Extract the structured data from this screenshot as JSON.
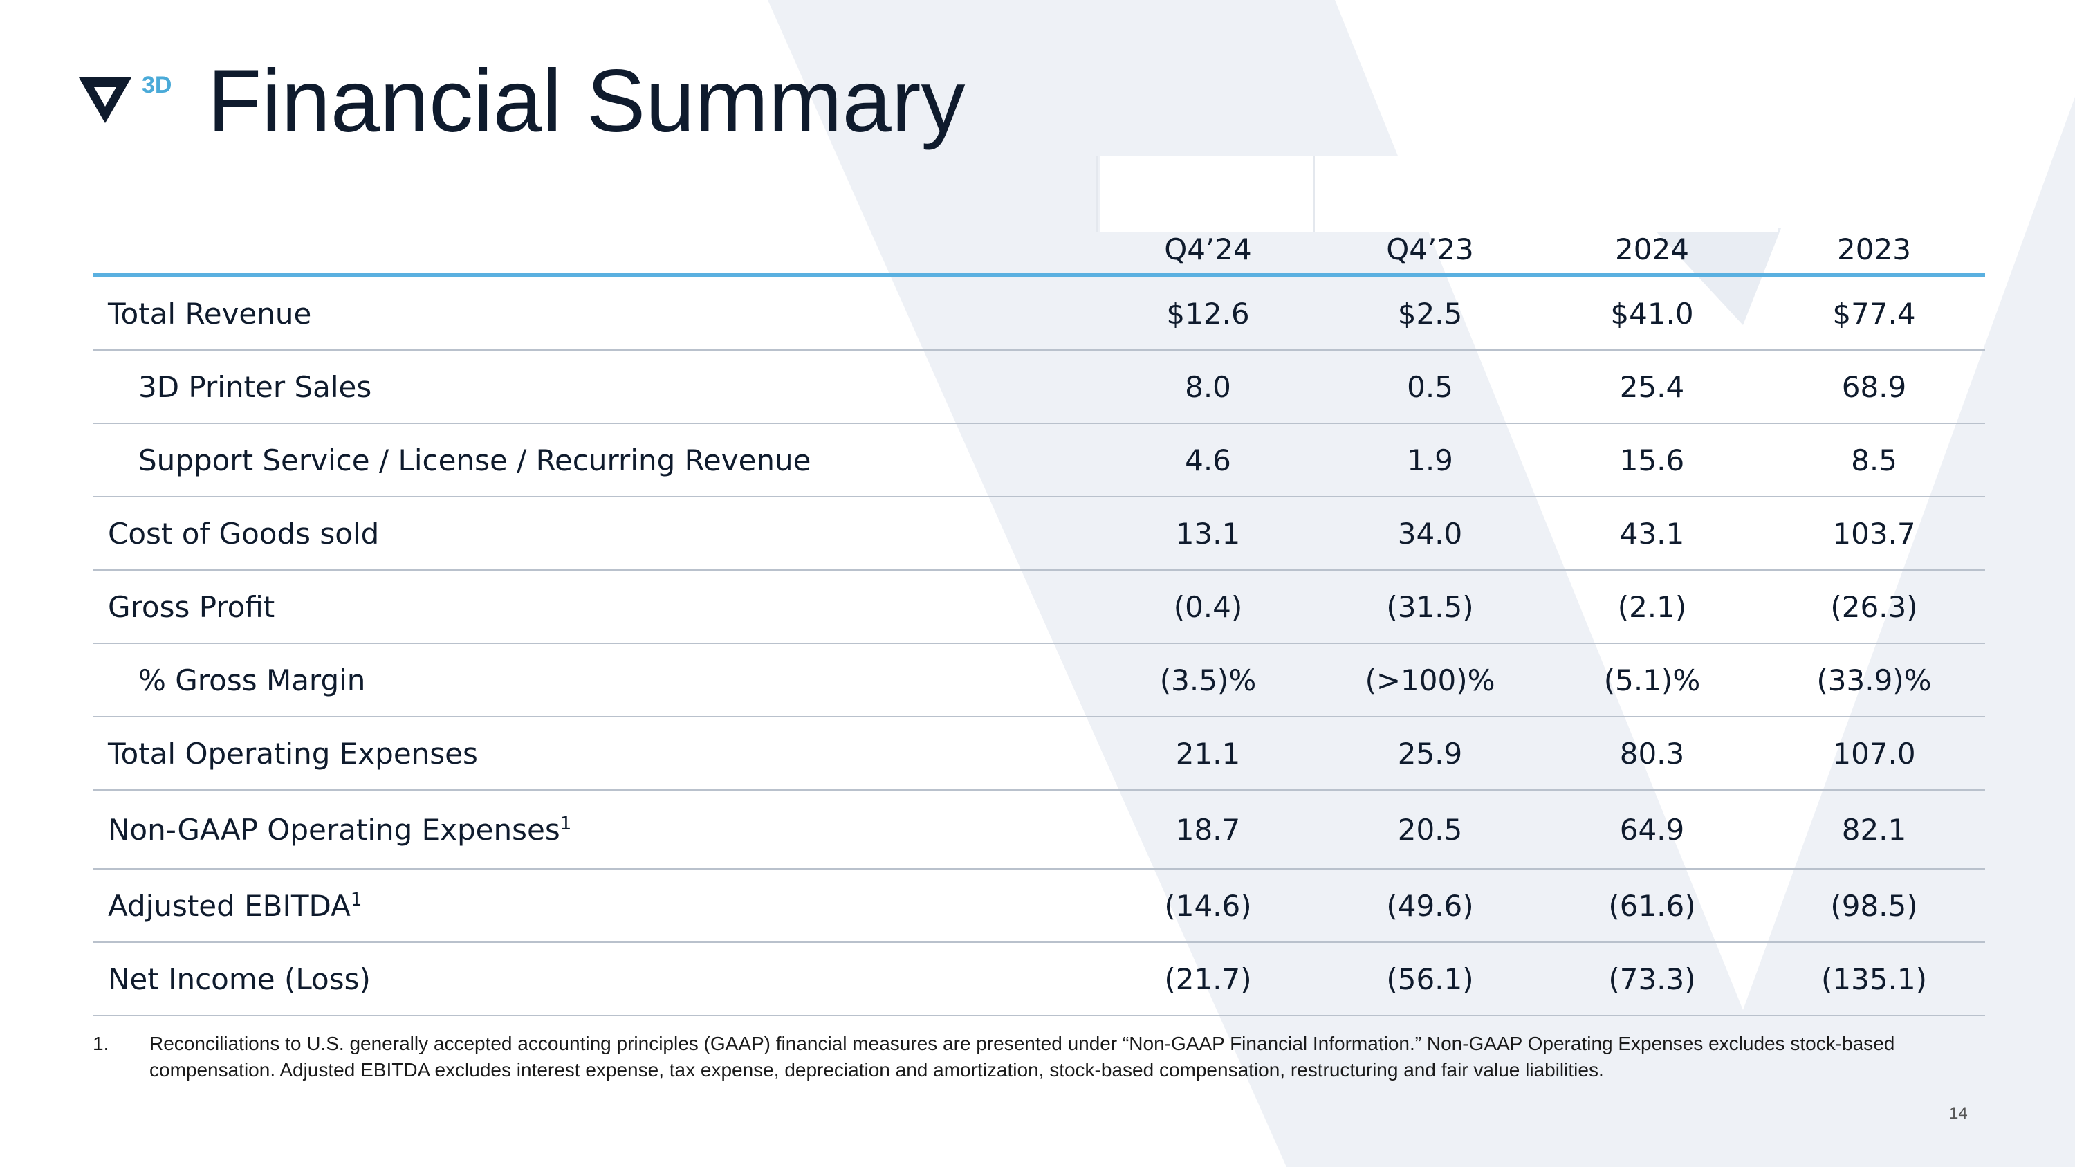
{
  "slide": {
    "logo_text": "3D",
    "title": "Financial Summary",
    "page_number": "14"
  },
  "table": {
    "columns": [
      "Q4’24",
      "Q4’23",
      "2024",
      "2023"
    ],
    "rows": [
      {
        "label": "Total Revenue",
        "sup": "",
        "values": [
          "$12.6",
          "$2.5",
          "$41.0",
          "$77.4"
        ]
      },
      {
        "label": "3D Printer Sales",
        "sup": "",
        "values": [
          "8.0",
          "0.5",
          "25.4",
          "68.9"
        ]
      },
      {
        "label": "Support Service / License / Recurring Revenue",
        "sup": "",
        "values": [
          "4.6",
          "1.9",
          "15.6",
          "8.5"
        ]
      },
      {
        "label": "Cost of Goods sold",
        "sup": "",
        "values": [
          "13.1",
          "34.0",
          "43.1",
          "103.7"
        ]
      },
      {
        "label": "Gross Profit",
        "sup": "",
        "values": [
          "(0.4)",
          "(31.5)",
          "(2.1)",
          "(26.3)"
        ]
      },
      {
        "label": "% Gross Margin",
        "sup": "",
        "values": [
          "(3.5)%",
          "(>100)%",
          "(5.1)%",
          "(33.9)%"
        ]
      },
      {
        "label": "Total Operating Expenses",
        "sup": "",
        "values": [
          "21.1",
          "25.9",
          "80.3",
          "107.0"
        ]
      },
      {
        "label": "Non-GAAP Operating Expenses",
        "sup": "1",
        "values": [
          "18.7",
          "20.5",
          "64.9",
          "82.1"
        ]
      },
      {
        "label": "Adjusted EBITDA",
        "sup": "1",
        "values": [
          "(14.6)",
          "(49.6)",
          "(61.6)",
          "(98.5)"
        ]
      },
      {
        "label": "Net Income (Loss)",
        "sup": "",
        "values": [
          "(21.7)",
          "(56.1)",
          "(73.3)",
          "(135.1)"
        ]
      }
    ]
  },
  "footnote": {
    "number": "1.",
    "text": "Reconciliations to U.S. generally accepted accounting principles (GAAP) financial measures are presented under “Non-GAAP Financial Information.”  Non-GAAP Operating Expenses excludes stock-based compensation.  Adjusted EBITDA excludes interest expense, tax expense, depreciation and amortization, stock-based compensation, restructuring and fair value liabilities."
  },
  "colors": {
    "title": "#0f1b2d",
    "accent": "#5ab0e0",
    "logo_3d": "#4aaad8",
    "watermark": "#eef1f6"
  }
}
